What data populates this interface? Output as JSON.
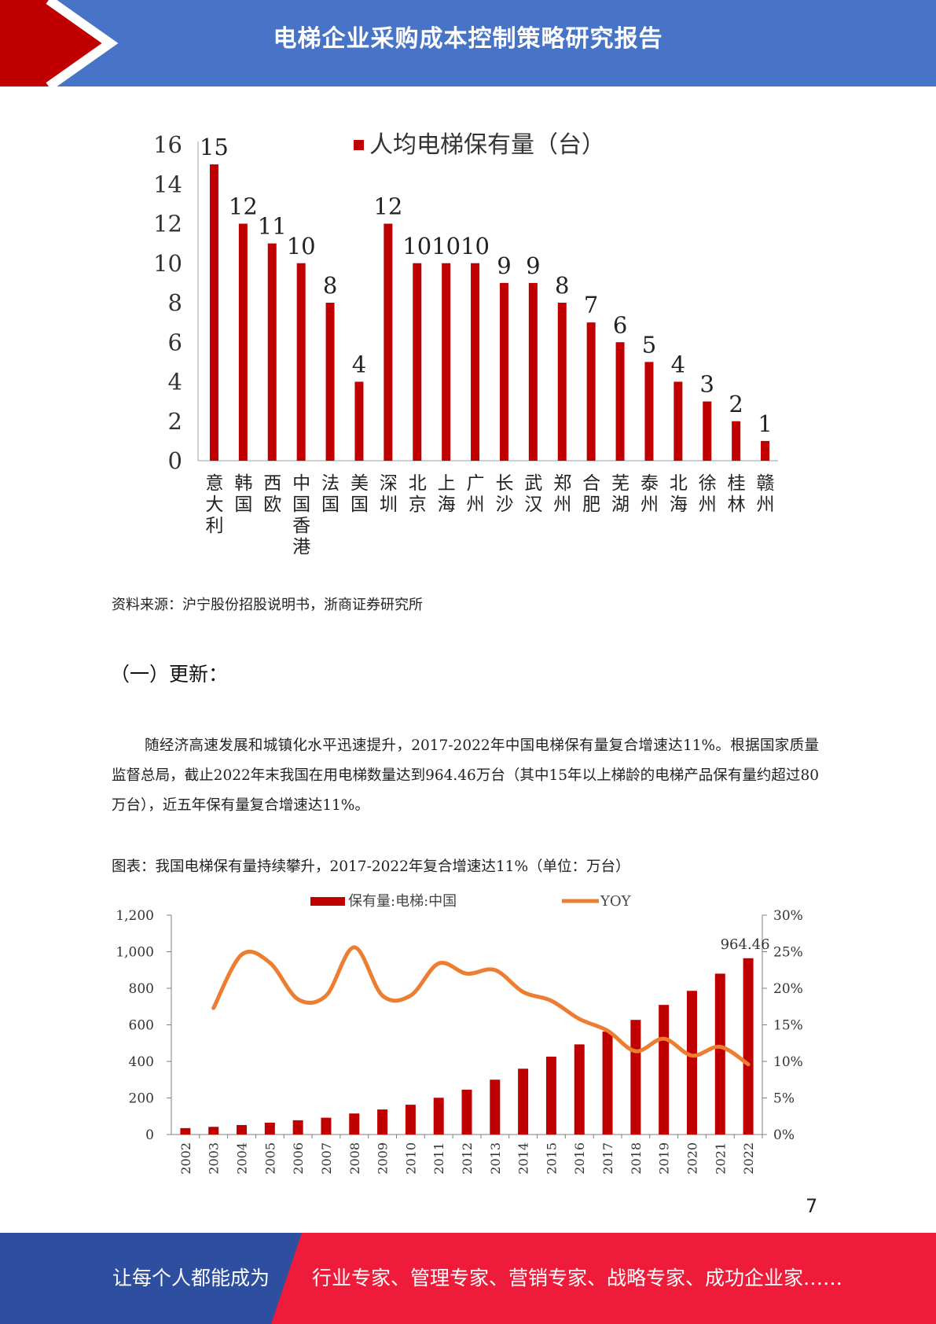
{
  "header": {
    "title": "电梯企业采购成本控制策略研究报告"
  },
  "colors": {
    "header_blue": "#4774c6",
    "header_red": "#c00000",
    "bar_red": "#c00000",
    "line_orange": "#ed7d31",
    "footer_blue": "#2e4fa0",
    "footer_red": "#ee1c3a"
  },
  "chart_data": [
    {
      "type": "bar",
      "legend": "人均电梯保有量（台）",
      "categories": [
        "意大利",
        "韩国",
        "西欧",
        "中国香港",
        "法国",
        "美国",
        "深圳",
        "北京",
        "上海",
        "广州",
        "长沙",
        "武汉",
        "郑州",
        "合肥",
        "芜湖",
        "泰州",
        "北海",
        "徐州",
        "桂林",
        "赣州"
      ],
      "values": [
        15,
        12,
        11,
        10,
        8,
        4,
        12,
        10,
        10,
        10,
        9,
        9,
        8,
        7,
        6,
        5,
        4,
        3,
        2,
        1
      ],
      "yticks": [
        "0",
        "2",
        "4",
        "6",
        "8",
        "10",
        "12",
        "14",
        "16"
      ],
      "ylim": [
        0,
        16
      ]
    },
    {
      "type": "bar+line",
      "x": [
        "2002",
        "2003",
        "2004",
        "2005",
        "2006",
        "2007",
        "2008",
        "2009",
        "2010",
        "2011",
        "2012",
        "2013",
        "2014",
        "2015",
        "2016",
        "2017",
        "2018",
        "2019",
        "2020",
        "2021",
        "2022"
      ],
      "series": [
        {
          "name": "保有量:电梯:中国",
          "type": "bar",
          "axis": "left",
          "values": [
            35,
            42,
            52,
            65,
            78,
            92,
            115,
            137,
            163,
            201,
            245,
            300,
            360,
            426,
            493,
            563,
            627,
            709,
            786,
            880,
            964.46
          ]
        },
        {
          "name": "YOY",
          "type": "line",
          "axis": "right",
          "x": [
            "2003",
            "2004",
            "2005",
            "2006",
            "2007",
            "2008",
            "2009",
            "2010",
            "2011",
            "2012",
            "2013",
            "2014",
            "2015",
            "2016",
            "2017",
            "2018",
            "2019",
            "2020",
            "2021",
            "2022"
          ],
          "values": [
            17.3,
            24.6,
            23.5,
            18.5,
            19.0,
            25.6,
            19.0,
            19.0,
            23.4,
            22.0,
            22.5,
            19.5,
            18.3,
            15.8,
            14.2,
            11.4,
            13.1,
            10.8,
            12.0,
            9.6
          ]
        }
      ],
      "left_ylim": [
        0,
        1200
      ],
      "left_yticks": [
        "0",
        "200",
        "400",
        "600",
        "800",
        "1,000",
        "1,200"
      ],
      "right_ylim": [
        0,
        30
      ],
      "right_yticks": [
        "0%",
        "5%",
        "10%",
        "15%",
        "20%",
        "25%",
        "30%"
      ],
      "annotation": "964.46"
    }
  ],
  "content": {
    "source": "资料来源：沪宁股份招股说明书，浙商证券研究所",
    "section_heading": "（一）更新：",
    "paragraph": "随经济高速发展和城镇化水平迅速提升，2017-2022年中国电梯保有量复合增速达11%。根据国家质量监督总局，截止2022年末我国在用电梯数量达到964.46万台（其中15年以上梯龄的电梯产品保有量约超过80万台），近五年保有量复合增速达11%。",
    "caption": "图表：我国电梯保有量持续攀升，2017-2022年复合增速达11%（单位：万台）"
  },
  "page_number": "7",
  "footer": {
    "left_text": "让每个人都能成为",
    "right_text": "行业专家、管理专家、营销专家、战略专家、成功企业家……"
  }
}
